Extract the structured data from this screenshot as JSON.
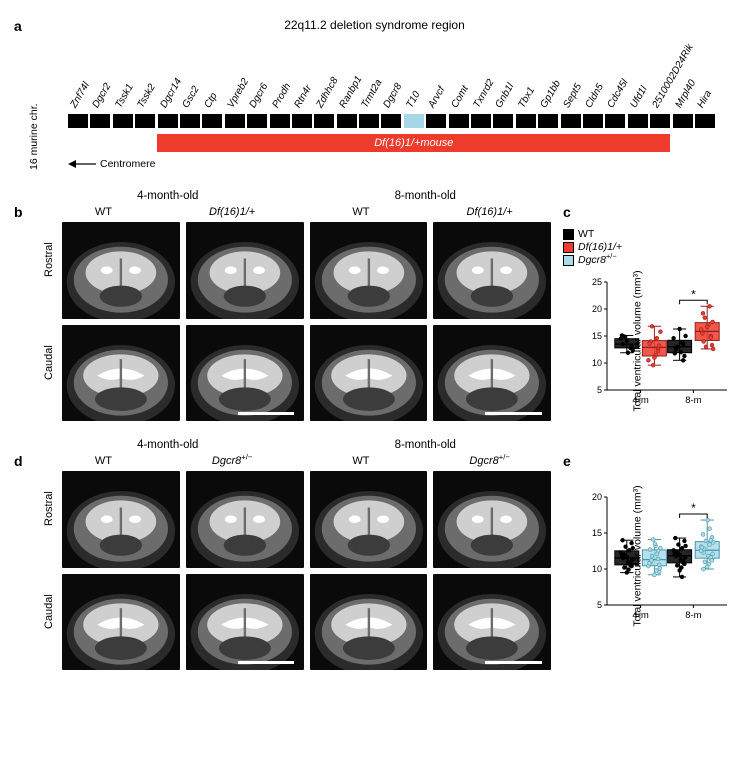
{
  "colors": {
    "black": "#000000",
    "red": "#ef3b2c",
    "light_blue": "#a9dbe8",
    "dgcr8_block": "#a6d7e6",
    "axis": "#000000",
    "mri_bg": "#0a0a0a",
    "mri_brain_fill": "#cfcfcf",
    "mri_brain_dark": "#6c6c6c"
  },
  "panel_a": {
    "label": "a",
    "title": "22q11.2 deletion syndrome region",
    "chromosome_label": "16 murine chr.",
    "centromere_label": "Centromere",
    "deletion_label": "Df(16)1/+mouse",
    "deletion_start_idx": 4,
    "deletion_end_idx": 26,
    "dgcr8_idx": 15,
    "genes": [
      "Znf74l",
      "Dgcr2",
      "Tssk1",
      "Tssk2",
      "Dgcr14",
      "Gsc2",
      "Ctp",
      "Vpreb2",
      "Dgcr6",
      "Prodh",
      "Rtn4r",
      "Zdhhc8",
      "Ranbp1",
      "Trmt2a",
      "Dgcr8",
      "T10",
      "Arvcf",
      "Comt",
      "Txnrd2",
      "Gnb1l",
      "Tbx1",
      "Gp1bb",
      "Sept5",
      "Cldn5",
      "Cdc45l",
      "Ufd1l",
      "2510002D24Rik",
      "Mrpl40",
      "Hira"
    ]
  },
  "row_labels": {
    "rostral": "Rostral",
    "caudal": "Caudal"
  },
  "panel_b": {
    "label": "b",
    "ages": [
      "4-month-old",
      "8-month-old"
    ],
    "genotypes": [
      "WT",
      "Df(16)1/+",
      "WT",
      "Df(16)1/+"
    ],
    "genotype_is_italic": [
      false,
      true,
      false,
      true
    ]
  },
  "panel_d": {
    "label": "d",
    "ages": [
      "4-month-old",
      "8-month-old"
    ],
    "genotypes": [
      "WT",
      "Dgcr8^{+/-}",
      "WT",
      "Dgcr8^{+/-}"
    ],
    "genotype_is_italic": [
      false,
      true,
      false,
      true
    ]
  },
  "chart_common": {
    "ylabel": "Total ventricular volume (mm³)",
    "xticks": [
      "4-m",
      "8-m"
    ],
    "x_positions": [
      0.28,
      0.72
    ],
    "box_halfwidth": 0.1,
    "jitter": [
      -0.03,
      0.03,
      -0.05,
      0.01,
      0.04,
      -0.02,
      0.05,
      0.0,
      -0.04,
      0.02,
      0.03,
      -0.01,
      0.045,
      -0.035,
      0.015,
      -0.025,
      0.005,
      0.04,
      -0.045,
      0.02
    ]
  },
  "panel_c": {
    "label": "c",
    "legend": [
      {
        "label": "WT",
        "italic": false,
        "fill_key": "black"
      },
      {
        "label": "Df(16)1/+",
        "italic": true,
        "fill_key": "red"
      },
      {
        "label": "Dgcr8^{+/-}",
        "italic": true,
        "fill_key": "light_blue"
      }
    ],
    "y_min": 5,
    "y_max": 25,
    "y_ticks": [
      5,
      10,
      15,
      20,
      25
    ],
    "sig_over": 1,
    "sig_label": "*",
    "groups": [
      {
        "fill_key": "black",
        "stroke": "#000",
        "points": [
          13.5,
          12.8,
          14.5,
          11.9,
          13.1,
          14.9,
          12.3,
          14.1,
          15.1
        ]
      },
      {
        "fill_key": "red",
        "stroke": "#8f2020",
        "points": [
          14.0,
          12.6,
          10.5,
          11.4,
          13.2,
          16.8,
          15.8,
          11.0,
          13.6,
          14.6,
          12.2,
          9.6
        ]
      },
      {
        "fill_key": "black",
        "stroke": "#000",
        "points": [
          12.6,
          13.5,
          14.6,
          12.0,
          11.3,
          13.0,
          15.0,
          16.3,
          11.8,
          13.8,
          10.5
        ]
      },
      {
        "fill_key": "red",
        "stroke": "#8f2020",
        "points": [
          14.0,
          15.0,
          16.2,
          17.1,
          13.3,
          18.4,
          12.6,
          16.7,
          15.5,
          20.5,
          14.7,
          13.0,
          17.6,
          19.2
        ]
      }
    ]
  },
  "panel_e": {
    "label": "e",
    "legend": [],
    "y_min": 5,
    "y_max": 20,
    "y_ticks": [
      5,
      10,
      15,
      20
    ],
    "sig_over": 1,
    "sig_label": "*",
    "groups": [
      {
        "fill_key": "black",
        "stroke": "#000",
        "points": [
          11.5,
          10.5,
          12.3,
          11.0,
          13.6,
          10.2,
          12.9,
          9.5,
          11.8,
          12.6,
          10.8,
          13.1,
          11.3,
          14.0,
          9.9,
          12.0,
          11.6,
          10.4
        ]
      },
      {
        "fill_key": "light_blue",
        "stroke": "#4996a8",
        "points": [
          11.0,
          12.5,
          10.4,
          13.2,
          9.6,
          11.8,
          12.9,
          9.2,
          10.8,
          12.1,
          11.4,
          14.1,
          10.1,
          12.7,
          9.8,
          11.2,
          13.5,
          10.6
        ]
      },
      {
        "fill_key": "black",
        "stroke": "#000",
        "points": [
          11.8,
          10.9,
          12.6,
          11.3,
          13.9,
          10.5,
          13.2,
          9.8,
          12.1,
          12.9,
          11.1,
          13.4,
          11.6,
          14.3,
          10.2,
          12.3,
          11.9,
          10.7,
          12.5,
          8.9
        ]
      },
      {
        "fill_key": "light_blue",
        "stroke": "#4996a8",
        "points": [
          12.3,
          11.4,
          13.1,
          11.8,
          14.4,
          11.0,
          13.7,
          10.3,
          12.6,
          13.4,
          11.6,
          13.9,
          12.1,
          14.8,
          10.7,
          12.8,
          16.8,
          11.2,
          13.0,
          15.6,
          10.0,
          14.0,
          12.5
        ]
      }
    ]
  }
}
